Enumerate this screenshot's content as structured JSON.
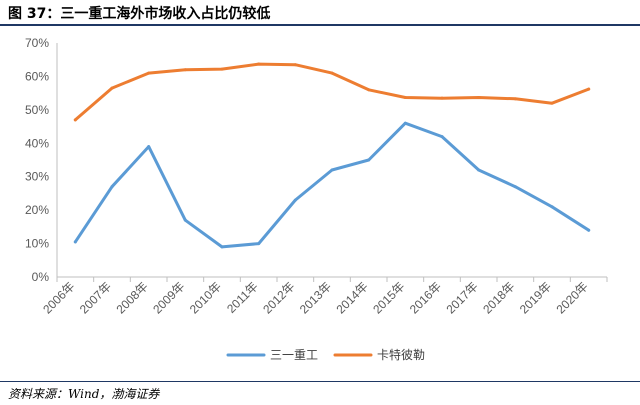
{
  "figure": {
    "title": "图 37：三一重工海外市场收入占比仍较低",
    "source": "资料来源：Wind，渤海证券"
  },
  "chart_data": {
    "type": "line",
    "categories": [
      "2006年",
      "2007年",
      "2008年",
      "2009年",
      "2010年",
      "2011年",
      "2012年",
      "2013年",
      "2014年",
      "2015年",
      "2016年",
      "2017年",
      "2018年",
      "2019年",
      "2020年"
    ],
    "series": [
      {
        "name": "三一重工",
        "color": "#5b9bd5",
        "values": [
          0.105,
          0.27,
          0.39,
          0.17,
          0.09,
          0.1,
          0.23,
          0.32,
          0.35,
          0.46,
          0.42,
          0.32,
          0.27,
          0.21,
          0.14
        ]
      },
      {
        "name": "卡特彼勒",
        "color": "#ed7d31",
        "values": [
          0.47,
          0.565,
          0.61,
          0.62,
          0.622,
          0.637,
          0.635,
          0.61,
          0.56,
          0.537,
          0.535,
          0.537,
          0.533,
          0.52,
          0.562
        ]
      }
    ],
    "y_ticks": [
      "0%",
      "10%",
      "20%",
      "30%",
      "40%",
      "50%",
      "60%",
      "70%"
    ],
    "ylim": [
      0,
      0.7
    ],
    "grid": false,
    "legend_position": "bottom"
  }
}
